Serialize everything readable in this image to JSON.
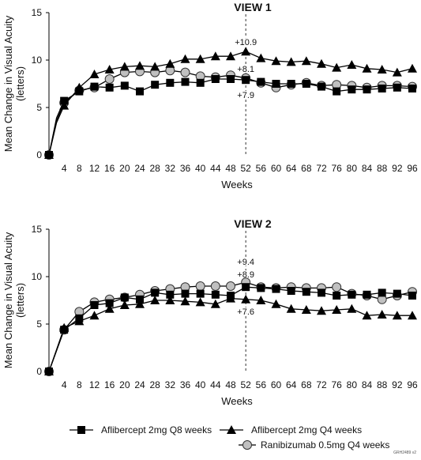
{
  "figure_id": "GRH2489 v2",
  "legend": {
    "items": [
      {
        "label": "Aflibercept 2mg Q8 weeks",
        "marker": "square"
      },
      {
        "label": "Aflibercept 2mg Q4 weeks",
        "marker": "triangle"
      },
      {
        "label": "Ranibizumab 0.5mg Q4 weeks",
        "marker": "circle"
      }
    ]
  },
  "colors": {
    "line": "#000000",
    "square_fill": "#000000",
    "triangle_fill": "#000000",
    "circle_fill": "#c0c0c0",
    "circle_stroke": "#333333"
  },
  "chart_data": [
    {
      "type": "line",
      "title": "VIEW 1",
      "xlabel": "Weeks",
      "ylabel": "Mean Change in Visual Acuity (letters)",
      "ylim": [
        0,
        15
      ],
      "yticks": [
        0,
        5,
        10,
        15
      ],
      "xlim": [
        0,
        96
      ],
      "xticks": [
        4,
        8,
        12,
        16,
        20,
        24,
        28,
        32,
        36,
        40,
        44,
        48,
        52,
        56,
        60,
        64,
        68,
        72,
        76,
        80,
        84,
        88,
        92,
        96
      ],
      "x": [
        0,
        2,
        4,
        8,
        12,
        16,
        20,
        24,
        28,
        32,
        36,
        40,
        44,
        48,
        52,
        56,
        60,
        64,
        68,
        72,
        76,
        80,
        84,
        88,
        92,
        96
      ],
      "marker_line_week": 52,
      "annotations": [
        "+10.9",
        "+8.1",
        "+7.9"
      ],
      "series": [
        {
          "name": "Aflibercept 2mg Q8 weeks",
          "marker": "square",
          "values": [
            0,
            3.9,
            5.7,
            6.7,
            7.2,
            7.1,
            7.3,
            6.7,
            7.4,
            7.6,
            7.7,
            7.6,
            8.0,
            8.0,
            7.9,
            7.7,
            7.5,
            7.5,
            7.5,
            7.2,
            6.7,
            6.9,
            6.9,
            7.0,
            7.1,
            7.0
          ]
        },
        {
          "name": "Aflibercept 2mg Q4 weeks",
          "marker": "triangle",
          "values": [
            0,
            3.4,
            5.2,
            7.1,
            8.5,
            9.0,
            9.3,
            9.4,
            9.3,
            9.6,
            10.1,
            10.1,
            10.4,
            10.4,
            10.9,
            10.2,
            9.9,
            9.8,
            9.9,
            9.6,
            9.2,
            9.5,
            9.1,
            9.0,
            8.7,
            9.1
          ]
        },
        {
          "name": "Ranibizumab 0.5mg Q4 weeks",
          "marker": "circle",
          "values": [
            0,
            3.6,
            5.5,
            6.8,
            7.1,
            8.0,
            8.7,
            8.8,
            8.7,
            8.9,
            8.7,
            8.3,
            8.2,
            8.4,
            8.1,
            7.6,
            7.1,
            7.4,
            7.6,
            7.3,
            7.4,
            7.3,
            7.1,
            7.3,
            7.3,
            7.2
          ]
        }
      ]
    },
    {
      "type": "line",
      "title": "VIEW 2",
      "xlabel": "Weeks",
      "ylabel": "Mean Change in Visual Acuity (letters)",
      "ylim": [
        0,
        15
      ],
      "yticks": [
        0,
        5,
        10,
        15
      ],
      "xlim": [
        0,
        96
      ],
      "xticks": [
        4,
        8,
        12,
        16,
        20,
        24,
        28,
        32,
        36,
        40,
        44,
        48,
        52,
        56,
        60,
        64,
        68,
        72,
        76,
        80,
        84,
        88,
        92,
        96
      ],
      "x": [
        0,
        4,
        8,
        12,
        16,
        20,
        24,
        28,
        32,
        36,
        40,
        44,
        48,
        52,
        56,
        60,
        64,
        68,
        72,
        76,
        80,
        84,
        88,
        92,
        96
      ],
      "marker_line_week": 52,
      "annotations": [
        "+9.4",
        "+8.9",
        "+7.6"
      ],
      "series": [
        {
          "name": "Aflibercept 2mg Q8 weeks",
          "marker": "square",
          "values": [
            0,
            4.4,
            5.6,
            7.0,
            7.2,
            7.8,
            7.6,
            8.3,
            8.1,
            8.2,
            8.2,
            8.1,
            8.0,
            8.9,
            8.8,
            8.7,
            8.5,
            8.4,
            8.3,
            8.0,
            8.1,
            8.1,
            8.3,
            8.2,
            8.0
          ]
        },
        {
          "name": "Aflibercept 2mg Q4 weeks",
          "marker": "triangle",
          "values": [
            0,
            4.6,
            5.3,
            5.9,
            6.6,
            7.0,
            7.1,
            7.5,
            7.5,
            7.4,
            7.3,
            7.1,
            7.7,
            7.6,
            7.5,
            7.1,
            6.6,
            6.5,
            6.4,
            6.5,
            6.6,
            5.9,
            6.0,
            5.9,
            5.9
          ]
        },
        {
          "name": "Ranibizumab 0.5mg Q4 weeks",
          "marker": "circle",
          "values": [
            0,
            4.4,
            6.3,
            7.3,
            7.6,
            7.8,
            8.1,
            8.5,
            8.7,
            8.9,
            9.0,
            9.0,
            9.0,
            9.4,
            8.9,
            8.8,
            8.9,
            8.8,
            8.8,
            8.9,
            8.2,
            8.0,
            7.6,
            8.0,
            8.4
          ]
        }
      ]
    }
  ]
}
